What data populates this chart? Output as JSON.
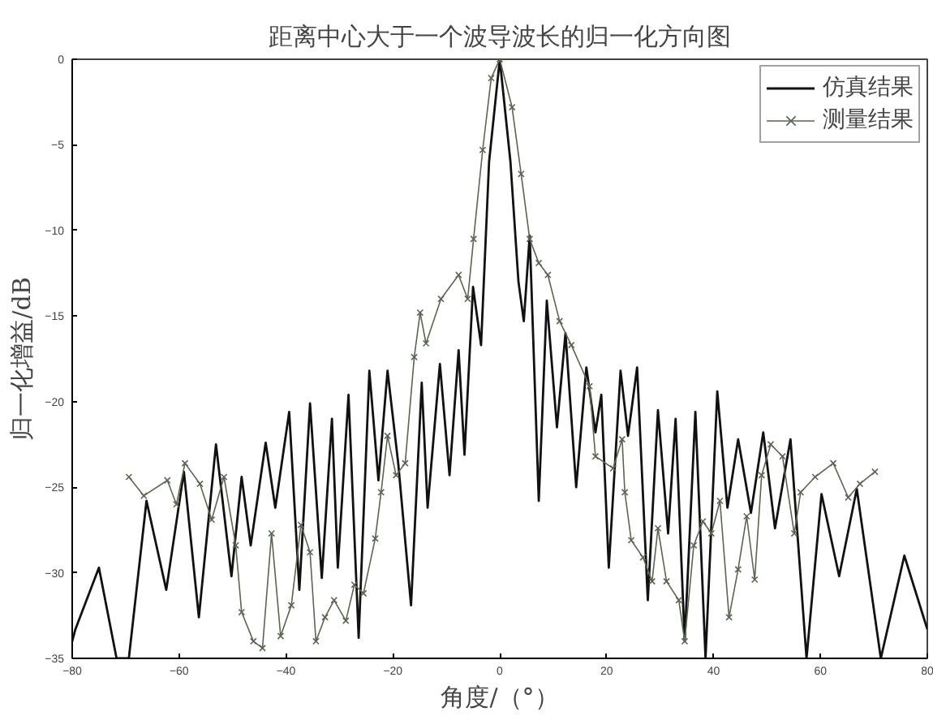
{
  "chart_data": {
    "type": "line",
    "title": "距离中心大于一个波导波长的归一化方向图",
    "xlabel": "角度/（°）",
    "ylabel": "归一化增益/dB",
    "xlim": [
      -80,
      80
    ],
    "xticks": [
      -80,
      -60,
      -40,
      -20,
      0,
      20,
      40,
      60,
      80
    ],
    "ylim": [
      -35,
      0
    ],
    "yticks": [
      -35,
      -30,
      -25,
      -20,
      -15,
      -10,
      -5,
      0
    ],
    "grid": false,
    "legend": "top right",
    "line_style": "solid",
    "series": [
      {
        "name": "仿真结果",
        "color": "#111111",
        "marker": "none",
        "x": [
          -80,
          -79.4,
          -75,
          -71.7,
          -69.4,
          -66.1,
          -62.4,
          -59.1,
          -56.3,
          -53.1,
          -50.2,
          -48.3,
          -46.6,
          -43.8,
          -42,
          -39.4,
          -37.5,
          -35.5,
          -33.3,
          -31.4,
          -30.3,
          -28.3,
          -26.4,
          -24.4,
          -22.7,
          -21,
          -19,
          -16.6,
          -14.6,
          -13.5,
          -11.2,
          -9.4,
          -7.7,
          -6.6,
          -5,
          -3.5,
          -2,
          0,
          2,
          3.5,
          4.5,
          5.6,
          7.3,
          8.8,
          10.7,
          12.3,
          14.3,
          16.2,
          17.9,
          19,
          20.4,
          22.6,
          24,
          25.7,
          27.7,
          29.6,
          31.5,
          32.9,
          34.6,
          36.6,
          38.5,
          40.7,
          42.6,
          44.6,
          47,
          49.3,
          51.5,
          54.4,
          57.4,
          60.2,
          63.5,
          66.8,
          71.3,
          75.7,
          80
        ],
        "values": [
          -34,
          -33.3,
          -29.7,
          -35,
          -35,
          -25.8,
          -31,
          -24.1,
          -32.6,
          -22.5,
          -30.2,
          -24.4,
          -28.4,
          -22.4,
          -26.2,
          -20.6,
          -31,
          -20.1,
          -30.3,
          -21,
          -29.7,
          -19.6,
          -33.8,
          -18.2,
          -24.6,
          -18.2,
          -23.6,
          -31.9,
          -18.9,
          -26.2,
          -17.8,
          -24.3,
          -17,
          -23.1,
          -13.3,
          -16.7,
          -6,
          0,
          -6,
          -13,
          -15.3,
          -10.3,
          -25.8,
          -14.1,
          -21.5,
          -16,
          -25,
          -18,
          -21.8,
          -19.6,
          -29.7,
          -18.2,
          -22,
          -18,
          -31.6,
          -20.5,
          -27.7,
          -21,
          -34,
          -20.6,
          -35,
          -19.4,
          -26.2,
          -22.2,
          -26.5,
          -21.8,
          -27.4,
          -22.2,
          -35,
          -25.4,
          -30.2,
          -25.1,
          -35,
          -29,
          -33.3
        ]
      },
      {
        "name": "测量结果",
        "color": "#5a6650",
        "marker": "cross",
        "x": [
          -69.4,
          -66.6,
          -62.2,
          -60.5,
          -58.9,
          -56.1,
          -53.9,
          -51.6,
          -49.4,
          -48.3,
          -46.1,
          -44.4,
          -42.7,
          -41,
          -39,
          -37.2,
          -35.5,
          -34.4,
          -32.7,
          -31,
          -28.8,
          -27.2,
          -25.5,
          -23.3,
          -22.2,
          -21,
          -19.4,
          -17.7,
          -16,
          -14.9,
          -13.8,
          -11,
          -7.7,
          -6,
          -4.9,
          -3.2,
          -1.6,
          0,
          2.3,
          4,
          5.6,
          7.3,
          9,
          11.2,
          13.4,
          16.8,
          17.9,
          21.2,
          22.9,
          23.4,
          24.6,
          26.8,
          28.5,
          29.6,
          31.2,
          33.5,
          34.6,
          36.3,
          38,
          39.6,
          41.2,
          42.9,
          44.6,
          46.2,
          47.7,
          49,
          50.7,
          52.9,
          55.1,
          56.3,
          59,
          62.4,
          65.2,
          67.4,
          70.2
        ],
        "values": [
          -24.4,
          -25.5,
          -24.6,
          -26,
          -23.6,
          -24.8,
          -26.9,
          -24.4,
          -28.4,
          -32.3,
          -34,
          -34.4,
          -27.7,
          -33.7,
          -31.9,
          -27.2,
          -28.8,
          -34,
          -32.6,
          -31.6,
          -32.8,
          -30.7,
          -31.2,
          -28,
          -25.3,
          -22,
          -24.3,
          -23.6,
          -17.4,
          -14.8,
          -16.6,
          -14,
          -12.6,
          -14,
          -10.5,
          -5.3,
          -1.1,
          0,
          -2.8,
          -6.7,
          -10.5,
          -11.9,
          -12.6,
          -15.3,
          -16.7,
          -19.1,
          -23.2,
          -23.9,
          -22.2,
          -25.3,
          -28.1,
          -29.1,
          -30.5,
          -27.4,
          -30.5,
          -31.6,
          -34,
          -28.4,
          -27,
          -27.7,
          -25.8,
          -32.6,
          -29.8,
          -26.7,
          -30.4,
          -24.3,
          -22.5,
          -23.2,
          -27.7,
          -25.3,
          -24.4,
          -23.6,
          -25.6,
          -24.8,
          -24.1
        ]
      }
    ]
  }
}
